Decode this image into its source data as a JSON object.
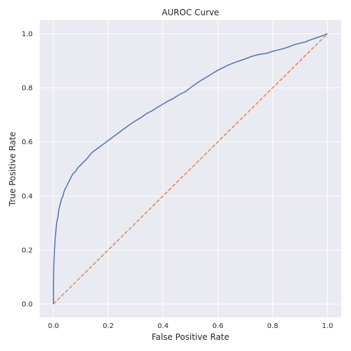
{
  "chart_data": {
    "type": "line",
    "title": "AUROC Curve",
    "xlabel": "False Positive Rate",
    "ylabel": "True Positive Rate",
    "xlim": [
      -0.05,
      1.05
    ],
    "ylim": [
      -0.05,
      1.05
    ],
    "grid": true,
    "x_ticks": [
      "0.0",
      "0.2",
      "0.4",
      "0.6",
      "0.8",
      "1.0"
    ],
    "y_ticks": [
      "0.0",
      "0.2",
      "0.4",
      "0.6",
      "0.8",
      "1.0"
    ],
    "x_tick_values": [
      0,
      0.2,
      0.4,
      0.6,
      0.8,
      1.0
    ],
    "y_tick_values": [
      0,
      0.2,
      0.4,
      0.6,
      0.8,
      1.0
    ],
    "colors": {
      "background": "#eaeaf2",
      "grid": "#ffffff",
      "roc": "#4c72b0",
      "baseline": "#dd8452"
    },
    "series": [
      {
        "style": "solid",
        "color": "#4c72b0",
        "x": [
          0.0,
          0.0,
          0.002,
          0.004,
          0.006,
          0.009,
          0.012,
          0.016,
          0.02,
          0.025,
          0.03,
          0.035,
          0.04,
          0.05,
          0.06,
          0.07,
          0.08,
          0.09,
          0.1,
          0.12,
          0.14,
          0.16,
          0.18,
          0.2,
          0.22,
          0.24,
          0.26,
          0.28,
          0.3,
          0.32,
          0.34,
          0.36,
          0.38,
          0.4,
          0.42,
          0.44,
          0.46,
          0.48,
          0.5,
          0.52,
          0.54,
          0.56,
          0.58,
          0.6,
          0.62,
          0.64,
          0.66,
          0.68,
          0.7,
          0.72,
          0.74,
          0.76,
          0.78,
          0.8,
          0.82,
          0.84,
          0.86,
          0.88,
          0.9,
          0.92,
          0.94,
          0.96,
          0.98,
          1.0
        ],
        "y": [
          0.0,
          0.08,
          0.16,
          0.2,
          0.24,
          0.27,
          0.3,
          0.32,
          0.35,
          0.37,
          0.39,
          0.4,
          0.42,
          0.44,
          0.46,
          0.48,
          0.49,
          0.505,
          0.515,
          0.535,
          0.56,
          0.575,
          0.59,
          0.605,
          0.62,
          0.635,
          0.65,
          0.665,
          0.678,
          0.69,
          0.705,
          0.715,
          0.728,
          0.74,
          0.752,
          0.762,
          0.775,
          0.785,
          0.8,
          0.815,
          0.828,
          0.84,
          0.853,
          0.865,
          0.875,
          0.885,
          0.893,
          0.9,
          0.907,
          0.915,
          0.921,
          0.925,
          0.928,
          0.935,
          0.94,
          0.945,
          0.952,
          0.96,
          0.965,
          0.97,
          0.978,
          0.985,
          0.992,
          1.0
        ]
      },
      {
        "style": "dashed",
        "color": "#dd8452",
        "x": [
          0,
          1
        ],
        "y": [
          0,
          1
        ]
      }
    ]
  }
}
